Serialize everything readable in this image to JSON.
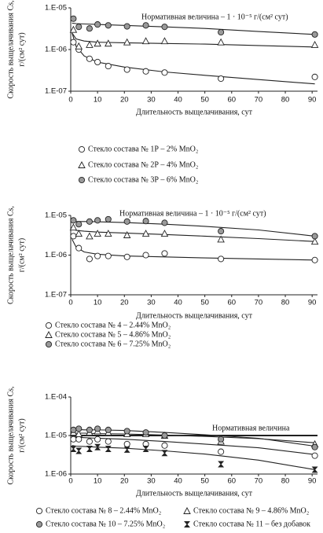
{
  "chart_data": [
    {
      "type": "scatter",
      "log_y": true,
      "grid": false,
      "xlim": [
        0,
        92
      ],
      "ylim": [
        1e-07,
        1e-05
      ],
      "xticks": [
        0,
        10,
        20,
        30,
        40,
        50,
        60,
        70,
        80,
        90
      ],
      "yticks": [
        {
          "value": 1e-05,
          "label": "1.E-05"
        },
        {
          "value": 1e-06,
          "label": "1.E-06"
        },
        {
          "value": 1e-07,
          "label": "1.E-07"
        }
      ],
      "xlabel": "Длительность выщелачивания, сут",
      "ylabel": [
        "Скорость выщелачивания Cs,",
        "г/(см² сут)"
      ],
      "annotation": "Нормативная величина – 1 · 10⁻⁵ г/(см² сут)",
      "x": [
        1,
        3,
        7,
        10,
        14,
        21,
        28,
        35,
        56,
        91
      ],
      "fit_x": [
        0.5,
        2,
        5,
        10,
        20,
        35,
        50,
        70,
        91
      ],
      "series": [
        {
          "name": "Стекло состава № 1Р – 2% MnO₂",
          "marker": "circle",
          "color": "#ffffff",
          "values": [
            1.5e-06,
            1e-06,
            6e-07,
            5e-07,
            4e-07,
            3.3e-07,
            3e-07,
            2.8e-07,
            2e-07,
            2.2e-07
          ],
          "fit": [
            2.5e-06,
            1.2e-06,
            7e-07,
            5e-07,
            3.8e-07,
            2.9e-07,
            2.4e-07,
            1.9e-07,
            1.5e-07
          ]
        },
        {
          "name": "Стекло состава № 2Р – 4% MnO₂",
          "marker": "triangle",
          "color": "#ffffff",
          "values": [
            3e-06,
            1.2e-06,
            1.3e-06,
            1.4e-06,
            1.4e-06,
            1.5e-06,
            1.6e-06,
            1.6e-06,
            1.5e-06,
            1.3e-06
          ],
          "fit": [
            2.5e-06,
            1.8e-06,
            1.6e-06,
            1.5e-06,
            1.45e-06,
            1.4e-06,
            1.35e-06,
            1.25e-06,
            1.15e-06
          ]
        },
        {
          "name": "Стекло состава № 3Р – 6% MnO₂",
          "marker": "circle",
          "color": "#9a9a9a",
          "values": [
            5.5e-06,
            3.5e-06,
            3.2e-06,
            4e-06,
            3.8e-06,
            3.6e-06,
            3.8e-06,
            3.5e-06,
            2.6e-06,
            2.3e-06
          ],
          "fit": [
            4.3e-06,
            4.2e-06,
            4.1e-06,
            4e-06,
            3.8e-06,
            3.5e-06,
            3.2e-06,
            2.7e-06,
            2.3e-06
          ]
        }
      ]
    },
    {
      "type": "scatter",
      "log_y": true,
      "grid": false,
      "xlim": [
        0,
        92
      ],
      "ylim": [
        1e-07,
        1e-05
      ],
      "xticks": [
        0,
        10,
        20,
        30,
        40,
        50,
        60,
        70,
        80,
        90
      ],
      "yticks": [
        {
          "value": 1e-05,
          "label": "1.E-05"
        },
        {
          "value": 1e-06,
          "label": "1.E-06"
        },
        {
          "value": 1e-07,
          "label": "1.E-07"
        }
      ],
      "xlabel": "Длительность выщелачивания, сут",
      "ylabel": [
        "Скорость выщелачивания Cs,",
        "г/(см² сут)"
      ],
      "annotation": "Нормативная величина – 1 · 10⁻⁵ г/(см² сут)",
      "x": [
        1,
        3,
        7,
        10,
        14,
        21,
        28,
        35,
        56,
        91
      ],
      "fit_x": [
        0.5,
        2,
        5,
        10,
        20,
        35,
        50,
        70,
        91
      ],
      "series": [
        {
          "name": "Стекло состава № 4 – 2.44% MnO₂",
          "marker": "circle",
          "color": "#ffffff",
          "values": [
            3e-06,
            1.5e-06,
            8e-07,
            9.5e-07,
            9.5e-07,
            9e-07,
            1e-06,
            1.1e-06,
            8e-07,
            7.5e-07
          ],
          "fit": [
            2.5e-06,
            1.6e-06,
            1.2e-06,
            1.05e-06,
            9.5e-07,
            9e-07,
            8.5e-07,
            8e-07,
            7.5e-07
          ]
        },
        {
          "name": "Стекло состава № 5 – 4.86% MnO₂",
          "marker": "triangle",
          "color": "#ffffff",
          "values": [
            5e-06,
            3.5e-06,
            3e-06,
            3.5e-06,
            3.5e-06,
            3.2e-06,
            3.5e-06,
            3.5e-06,
            2.5e-06,
            2.2e-06
          ],
          "fit": [
            4.5e-06,
            4.2e-06,
            4e-06,
            3.8e-06,
            3.6e-06,
            3.3e-06,
            3e-06,
            2.6e-06,
            2.2e-06
          ]
        },
        {
          "name": "Стекло состава № 6 – 7.25% MnO₂",
          "marker": "circle",
          "color": "#9a9a9a",
          "values": [
            7.5e-06,
            6e-06,
            7e-06,
            7.5e-06,
            8e-06,
            7e-06,
            7.2e-06,
            6.5e-06,
            4e-06,
            3e-06
          ],
          "fit": [
            7e-06,
            7e-06,
            7e-06,
            6.9e-06,
            6.6e-06,
            6e-06,
            5.3e-06,
            4.3e-06,
            3e-06
          ]
        }
      ]
    },
    {
      "type": "scatter",
      "log_y": true,
      "grid": false,
      "xlim": [
        0,
        92
      ],
      "ylim": [
        1e-06,
        0.0001
      ],
      "xticks": [
        0,
        10,
        20,
        30,
        40,
        50,
        60,
        70,
        80,
        90
      ],
      "yticks": [
        {
          "value": 0.0001,
          "label": "1.E-04"
        },
        {
          "value": 1e-05,
          "label": "1.E-05"
        },
        {
          "value": 1e-06,
          "label": "1.E-06"
        }
      ],
      "xlabel": "Длительность выщелачивания, сут",
      "ylabel": [
        "Скорость выщелачивания Cs,",
        "г/(см² сут)"
      ],
      "reference_line": {
        "value": 1e-05,
        "label": "Нормативная величина"
      },
      "x": [
        1,
        3,
        7,
        10,
        14,
        21,
        28,
        35,
        56,
        91
      ],
      "fit_x": [
        0.5,
        2,
        5,
        10,
        20,
        35,
        50,
        70,
        91
      ],
      "series": [
        {
          "name": "Стекло состава № 8 – 2.44% MnO₂",
          "marker": "circle",
          "color": "#ffffff",
          "values": [
            8e-06,
            8e-06,
            7e-06,
            8e-06,
            7e-06,
            6e-06,
            6e-06,
            5.5e-06,
            3.8e-06,
            3e-06
          ],
          "fit": [
            9e-06,
            9e-06,
            8.8e-06,
            8.5e-06,
            8e-06,
            7e-06,
            6e-06,
            4.8e-06,
            3.2e-06
          ]
        },
        {
          "name": "Стекло состава № 9 – 4.86% MnO₂",
          "marker": "triangle",
          "color": "#ffffff",
          "values": [
            1.2e-05,
            1.1e-05,
            1.2e-05,
            1.3e-05,
            1.2e-05,
            1.1e-05,
            1.1e-05,
            1e-05,
            7e-06,
            6e-06
          ],
          "fit": [
            1.15e-05,
            1.15e-05,
            1.15e-05,
            1.12e-05,
            1.1e-05,
            1.03e-05,
            9.5e-06,
            8.3e-06,
            6.5e-06
          ]
        },
        {
          "name": "Стекло состава № 10 – 7.25% MnO₂",
          "marker": "circle",
          "color": "#9a9a9a",
          "values": [
            1.4e-05,
            1.5e-05,
            1.4e-05,
            1.5e-05,
            1.4e-05,
            1.3e-05,
            1.2e-05,
            1e-05,
            8e-06,
            5e-06
          ],
          "fit": [
            1.45e-05,
            1.45e-05,
            1.4e-05,
            1.4e-05,
            1.35e-05,
            1.2e-05,
            1.05e-05,
            8.5e-06,
            5.3e-06
          ]
        },
        {
          "name": "Стекло состава № 11 – без добавок",
          "marker": "star",
          "color": "#222222",
          "values": [
            4.5e-06,
            4e-06,
            4.5e-06,
            5e-06,
            4.5e-06,
            4.3e-06,
            4.5e-06,
            3.5e-06,
            1.8e-06,
            1.3e-06
          ],
          "fit": [
            5.5e-06,
            5.3e-06,
            5.2e-06,
            5e-06,
            4.7e-06,
            4e-06,
            3.3e-06,
            2.3e-06,
            1.3e-06
          ]
        }
      ]
    }
  ]
}
